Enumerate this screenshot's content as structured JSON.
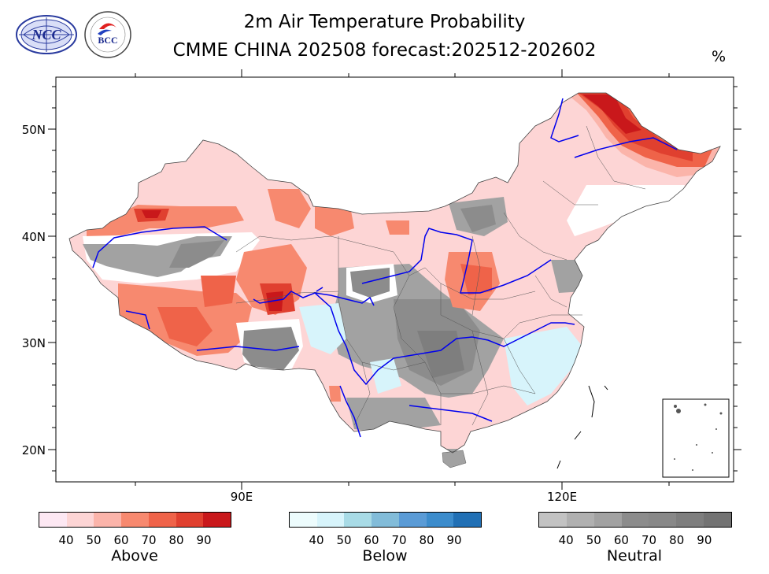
{
  "header": {
    "title_line1": "2m Air Temperature Probability",
    "title_line2": "CMME CHINA 202508 forecast:202512-202602",
    "unit": "%"
  },
  "logos": {
    "ncc": {
      "text": "NCC",
      "color": "#1b2a8f"
    },
    "bcc": {
      "text": "BCC",
      "color": "#1b2a8f"
    }
  },
  "map": {
    "lat_labels": [
      "50N",
      "40N",
      "30N",
      "20N"
    ],
    "lon_labels": [
      "90E",
      "120E"
    ],
    "river_color": "#0000ee",
    "boundary_color": "#555555"
  },
  "colorbars": [
    {
      "name": "Above",
      "ticks": [
        "40",
        "50",
        "60",
        "70",
        "80",
        "90"
      ],
      "colors": [
        "#fde8f3",
        "#fdd5d5",
        "#fbb4aa",
        "#f7896f",
        "#ef6349",
        "#e0402f",
        "#c9181b"
      ]
    },
    {
      "name": "Below",
      "ticks": [
        "40",
        "50",
        "60",
        "70",
        "80",
        "90"
      ],
      "colors": [
        "#edfcfd",
        "#d7f4fb",
        "#a8dbe6",
        "#82bcd9",
        "#5a9bd6",
        "#3c8ccc",
        "#2170b5"
      ]
    },
    {
      "name": "Neutral",
      "ticks": [
        "40",
        "50",
        "60",
        "70",
        "80",
        "90"
      ],
      "colors": [
        "#c2c2c2",
        "#b0b0b0",
        "#a2a2a2",
        "#8c8c8c",
        "#888888",
        "#7e7e7e",
        "#737373"
      ]
    }
  ]
}
